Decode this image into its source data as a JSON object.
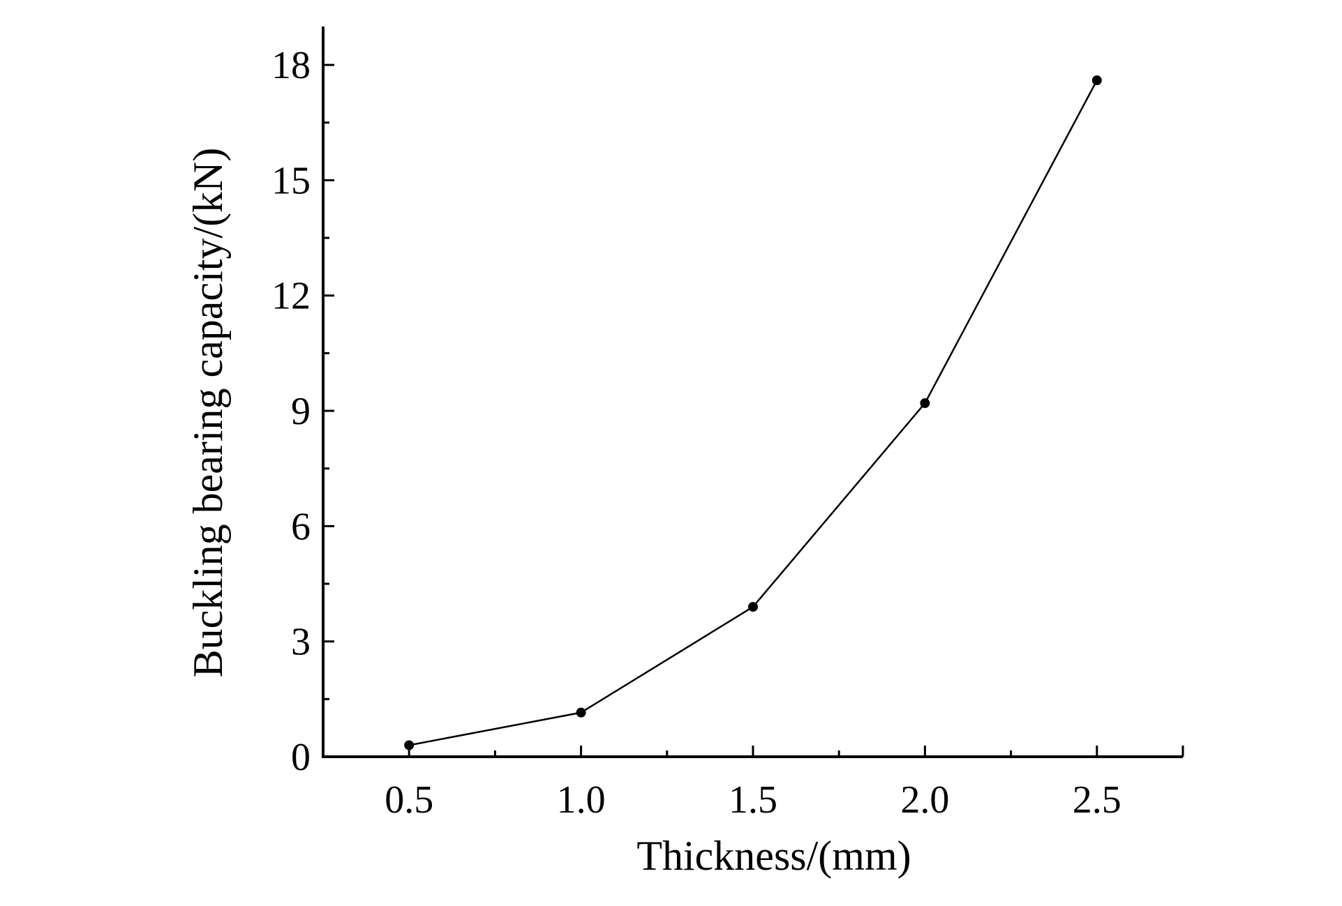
{
  "chart_data": {
    "type": "line",
    "xlabel": "Thickness/(mm)",
    "ylabel": "Buckling bearing capacity/(kN)",
    "xlim": [
      0.25,
      2.75
    ],
    "ylim": [
      0,
      19
    ],
    "x_ticks": [
      0.5,
      1.0,
      1.5,
      2.0,
      2.5
    ],
    "x_tick_labels": [
      "0.5",
      "1.0",
      "1.5",
      "2.0",
      "2.5"
    ],
    "x_minor_ticks": [
      0.75,
      1.25,
      1.75,
      2.25
    ],
    "y_ticks": [
      0,
      3,
      6,
      9,
      12,
      15,
      18
    ],
    "y_tick_labels": [
      "0",
      "3",
      "6",
      "9",
      "12",
      "15",
      "18"
    ],
    "y_minor_ticks": [
      1.5,
      4.5,
      7.5,
      10.5,
      13.5,
      16.5
    ],
    "grid": false,
    "series": [
      {
        "x": [
          0.5,
          1.0,
          1.5,
          2.0,
          2.5
        ],
        "values": [
          0.3,
          1.15,
          3.9,
          9.2,
          17.6
        ],
        "color": "#000000",
        "marker": "circle"
      }
    ]
  }
}
